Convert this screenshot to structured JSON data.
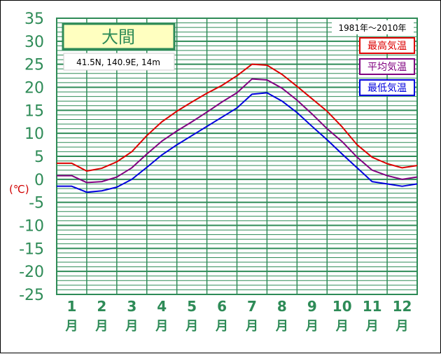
{
  "chart_data": {
    "type": "line",
    "title": "大間",
    "location": "41.5N,  140.9E,  14m",
    "period": "1981年～2010年",
    "ylabel": "(℃)",
    "ylim": [
      -25,
      35
    ],
    "yticks": [
      35,
      30,
      25,
      20,
      15,
      10,
      5,
      0,
      -5,
      -10,
      -15,
      -20,
      -25
    ],
    "month_numbers": [
      "1",
      "2",
      "3",
      "4",
      "5",
      "6",
      "7",
      "8",
      "9",
      "10",
      "11",
      "12"
    ],
    "month_suffix": "月",
    "x": [
      1,
      1.5,
      2,
      2.5,
      3,
      3.5,
      4,
      4.5,
      5,
      5.5,
      6,
      6.5,
      7,
      7.5,
      8,
      8.5,
      9,
      9.5,
      10,
      10.5,
      11,
      11.5,
      12,
      12.5
    ],
    "series": [
      {
        "name": "最高気温",
        "color": "#dd0000",
        "values": [
          3.5,
          1.8,
          2.4,
          3.8,
          6.0,
          9.5,
          12.5,
          14.8,
          16.8,
          18.7,
          20.4,
          22.5,
          25.0,
          24.8,
          22.8,
          20.2,
          17.5,
          14.8,
          11.4,
          7.5,
          4.8,
          3.4,
          2.5,
          3.0
        ]
      },
      {
        "name": "平均気温",
        "color": "#800080",
        "values": [
          0.8,
          -0.7,
          -0.5,
          0.5,
          2.5,
          5.5,
          8.3,
          10.5,
          12.5,
          14.6,
          16.8,
          18.8,
          21.8,
          21.6,
          19.8,
          17.2,
          14.2,
          11.0,
          8.2,
          4.8,
          2.0,
          0.8,
          0.0,
          0.5
        ]
      },
      {
        "name": "最低気温",
        "color": "#0000dd",
        "values": [
          -1.5,
          -2.8,
          -2.5,
          -1.7,
          0.0,
          2.6,
          5.3,
          7.5,
          9.5,
          11.5,
          13.5,
          15.5,
          18.5,
          18.8,
          17.0,
          14.5,
          11.5,
          8.6,
          5.5,
          2.5,
          -0.5,
          -1.0,
          -1.5,
          -1.0
        ]
      }
    ],
    "grid": true,
    "legend_position": "top-right"
  }
}
